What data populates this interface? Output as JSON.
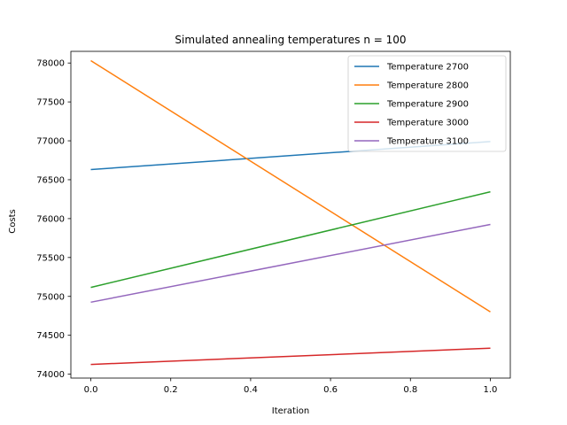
{
  "chart_data": {
    "type": "line",
    "title": "Simulated annealing temperatures n = 100",
    "xlabel": "Iteration",
    "ylabel": "Costs",
    "x": [
      0.0,
      1.0
    ],
    "xlim": [
      -0.05,
      1.05
    ],
    "ylim": [
      73950,
      78150
    ],
    "xticks": [
      0.0,
      0.2,
      0.4,
      0.6,
      0.8,
      1.0
    ],
    "xtick_labels": [
      "0.0",
      "0.2",
      "0.4",
      "0.6",
      "0.8",
      "1.0"
    ],
    "yticks": [
      74000,
      74500,
      75000,
      75500,
      76000,
      76500,
      77000,
      77500,
      78000
    ],
    "ytick_labels": [
      "74000",
      "74500",
      "75000",
      "75500",
      "76000",
      "76500",
      "77000",
      "77500",
      "78000"
    ],
    "grid": false,
    "legend_position": "top-right",
    "series": [
      {
        "name": "Temperature 2700",
        "color": "#1f77b4",
        "values": [
          76630,
          76990
        ]
      },
      {
        "name": "Temperature 2800",
        "color": "#ff7f0e",
        "values": [
          78030,
          74800
        ]
      },
      {
        "name": "Temperature 2900",
        "color": "#2ca02c",
        "values": [
          75115,
          76345
        ]
      },
      {
        "name": "Temperature 3000",
        "color": "#d62728",
        "values": [
          74125,
          74335
        ]
      },
      {
        "name": "Temperature 3100",
        "color": "#9467bd",
        "values": [
          74925,
          75925
        ]
      }
    ]
  }
}
